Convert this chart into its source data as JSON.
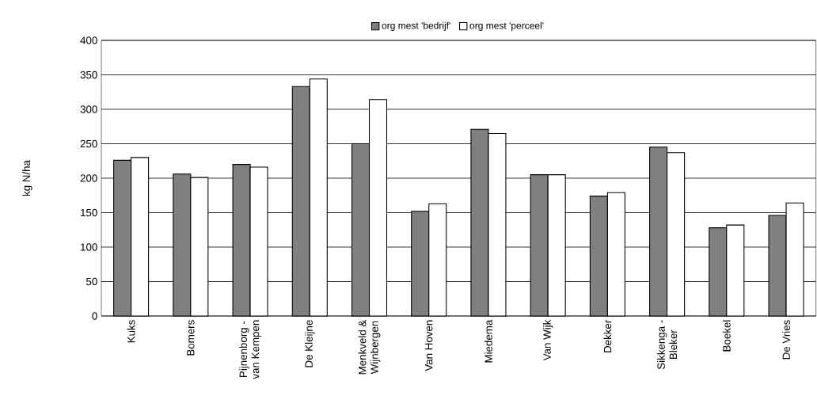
{
  "chart_data": {
    "type": "bar",
    "ylabel": "kg N/ha",
    "categories": [
      "Kuks",
      "Bomers",
      "Pijnenborg - van Kempen",
      "De Kleijne",
      "Menkveld & Wijnbergen",
      "Van Hoven",
      "Miedema",
      "Van Wijk",
      "Dekker",
      "Sikkenga - Bleker",
      "Boekel",
      "De Vries"
    ],
    "series": [
      {
        "name": "org mest 'bedrijf'",
        "color": "#808080",
        "values": [
          226,
          206,
          220,
          333,
          250,
          152,
          271,
          205,
          174,
          245,
          128,
          146
        ]
      },
      {
        "name": "org mest 'perceel'",
        "color": "#ffffff",
        "values": [
          230,
          201,
          216,
          344,
          314,
          163,
          265,
          205,
          179,
          237,
          132,
          164
        ]
      }
    ],
    "ylim": [
      0,
      400
    ],
    "yticks": [
      0,
      50,
      100,
      150,
      200,
      250,
      300,
      350,
      400
    ],
    "grid": "y",
    "legend": "top"
  }
}
